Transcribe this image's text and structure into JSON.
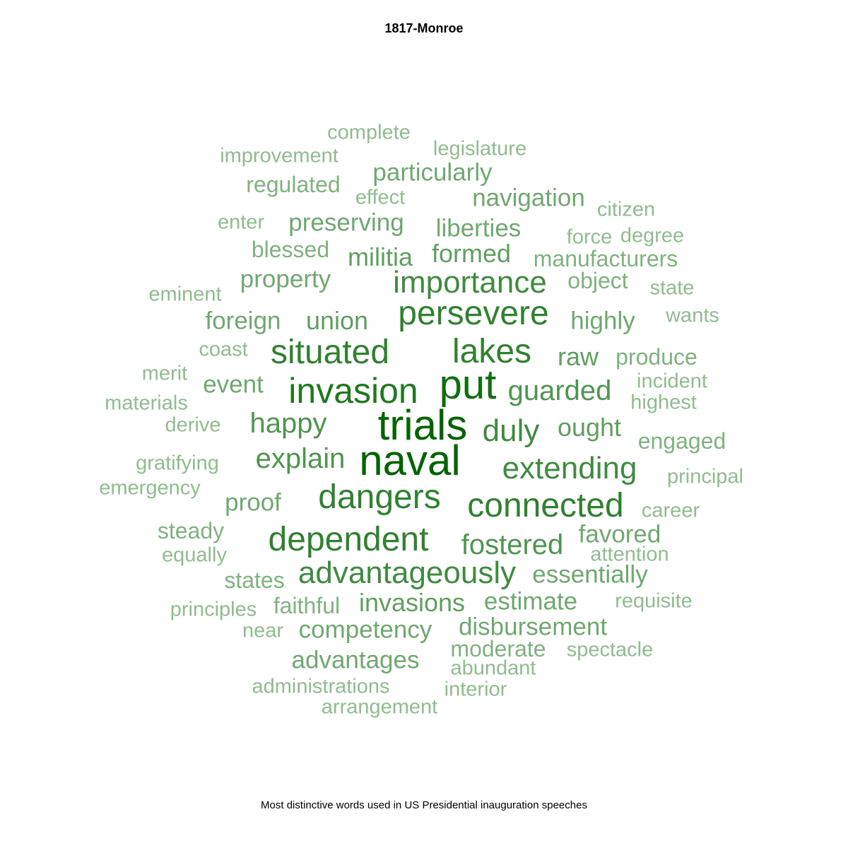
{
  "title": "1817-Monroe",
  "caption": "Most distinctive words used in US Presidential inauguration speeches",
  "chart_data": {
    "type": "wordcloud",
    "scale_note": "relative weight 1-10 (10 = most distinctive)",
    "colors": {
      "strong": "#006400",
      "light": "#8fbc8f"
    },
    "words": [
      {
        "text": "naval",
        "weight": 10
      },
      {
        "text": "trials",
        "weight": 10
      },
      {
        "text": "put",
        "weight": 9
      },
      {
        "text": "invasion",
        "weight": 8
      },
      {
        "text": "dangers",
        "weight": 7
      },
      {
        "text": "persevere",
        "weight": 7
      },
      {
        "text": "lakes",
        "weight": 7
      },
      {
        "text": "situated",
        "weight": 7
      },
      {
        "text": "connected",
        "weight": 7
      },
      {
        "text": "dependent",
        "weight": 7
      },
      {
        "text": "duly",
        "weight": 6
      },
      {
        "text": "extending",
        "weight": 6
      },
      {
        "text": "importance",
        "weight": 6
      },
      {
        "text": "advantageously",
        "weight": 6
      },
      {
        "text": "guarded",
        "weight": 5
      },
      {
        "text": "fostered",
        "weight": 5
      },
      {
        "text": "happy",
        "weight": 5
      },
      {
        "text": "explain",
        "weight": 5
      },
      {
        "text": "invasions",
        "weight": 4
      },
      {
        "text": "militia",
        "weight": 4
      },
      {
        "text": "formed",
        "weight": 4
      },
      {
        "text": "union",
        "weight": 4
      },
      {
        "text": "raw",
        "weight": 4
      },
      {
        "text": "ought",
        "weight": 4
      },
      {
        "text": "liberties",
        "weight": 3
      },
      {
        "text": "preserving",
        "weight": 3
      },
      {
        "text": "navigation",
        "weight": 3
      },
      {
        "text": "particularly",
        "weight": 3
      },
      {
        "text": "property",
        "weight": 3
      },
      {
        "text": "foreign",
        "weight": 3
      },
      {
        "text": "highly",
        "weight": 3
      },
      {
        "text": "event",
        "weight": 3
      },
      {
        "text": "proof",
        "weight": 3
      },
      {
        "text": "favored",
        "weight": 3
      },
      {
        "text": "essentially",
        "weight": 3
      },
      {
        "text": "competency",
        "weight": 3
      },
      {
        "text": "disbursement",
        "weight": 3
      },
      {
        "text": "advantages",
        "weight": 3
      },
      {
        "text": "estimate",
        "weight": 3
      },
      {
        "text": "manufacturers",
        "weight": 2
      },
      {
        "text": "regulated",
        "weight": 2
      },
      {
        "text": "produce",
        "weight": 2
      },
      {
        "text": "object",
        "weight": 2
      },
      {
        "text": "blessed",
        "weight": 2
      },
      {
        "text": "steady",
        "weight": 2
      },
      {
        "text": "faithful",
        "weight": 2
      },
      {
        "text": "moderate",
        "weight": 2
      },
      {
        "text": "states",
        "weight": 2
      },
      {
        "text": "engaged",
        "weight": 2
      },
      {
        "text": "legislature",
        "weight": 1
      },
      {
        "text": "complete",
        "weight": 1
      },
      {
        "text": "improvement",
        "weight": 1
      },
      {
        "text": "effect",
        "weight": 1
      },
      {
        "text": "citizen",
        "weight": 1
      },
      {
        "text": "enter",
        "weight": 1
      },
      {
        "text": "force",
        "weight": 1
      },
      {
        "text": "degree",
        "weight": 1
      },
      {
        "text": "eminent",
        "weight": 1
      },
      {
        "text": "state",
        "weight": 1
      },
      {
        "text": "wants",
        "weight": 1
      },
      {
        "text": "coast",
        "weight": 1
      },
      {
        "text": "merit",
        "weight": 1
      },
      {
        "text": "incident",
        "weight": 1
      },
      {
        "text": "highest",
        "weight": 1
      },
      {
        "text": "materials",
        "weight": 1
      },
      {
        "text": "derive",
        "weight": 1
      },
      {
        "text": "gratifying",
        "weight": 1
      },
      {
        "text": "emergency",
        "weight": 1
      },
      {
        "text": "principal",
        "weight": 1
      },
      {
        "text": "career",
        "weight": 1
      },
      {
        "text": "equally",
        "weight": 1
      },
      {
        "text": "attention",
        "weight": 1
      },
      {
        "text": "principles",
        "weight": 1
      },
      {
        "text": "requisite",
        "weight": 1
      },
      {
        "text": "near",
        "weight": 1
      },
      {
        "text": "spectacle",
        "weight": 1
      },
      {
        "text": "abundant",
        "weight": 1
      },
      {
        "text": "administrations",
        "weight": 1
      },
      {
        "text": "interior",
        "weight": 1
      },
      {
        "text": "arrangement",
        "weight": 1
      }
    ]
  }
}
